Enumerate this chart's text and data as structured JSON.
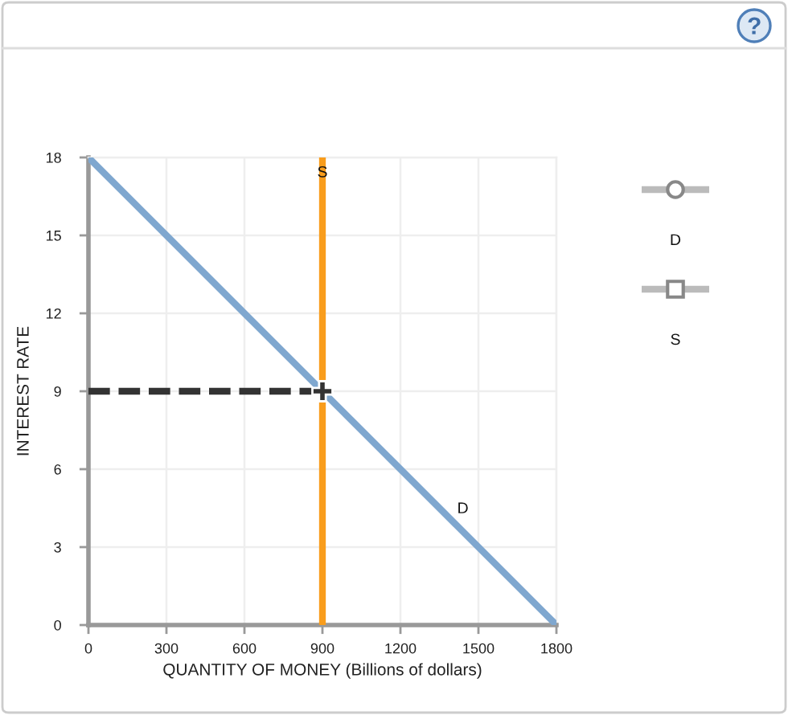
{
  "chart_data": {
    "type": "line",
    "xlabel": "QUANTITY OF MONEY (Billions of dollars)",
    "ylabel": "INTEREST RATE",
    "xlim": [
      0,
      1800
    ],
    "ylim": [
      0,
      18
    ],
    "xticks": [
      0,
      300,
      600,
      900,
      1200,
      1500,
      1800
    ],
    "yticks": [
      0,
      3,
      6,
      9,
      12,
      15,
      18
    ],
    "grid": true,
    "legend": "top right",
    "series": [
      {
        "name": "D",
        "color": "#7fa7cf",
        "x": [
          0,
          1800
        ],
        "values": [
          18,
          0
        ]
      },
      {
        "name": "S",
        "color": "#f99d1c",
        "x": [
          900,
          900
        ],
        "values": [
          0,
          18
        ]
      },
      {
        "color": "#333333",
        "x": [
          0,
          900
        ],
        "values": [
          9,
          9
        ],
        "line_style": "dashed"
      },
      {
        "type": "scatter",
        "color": "#333333",
        "x": [
          900
        ],
        "values": [
          9
        ],
        "marker": "cross"
      }
    ]
  }
}
